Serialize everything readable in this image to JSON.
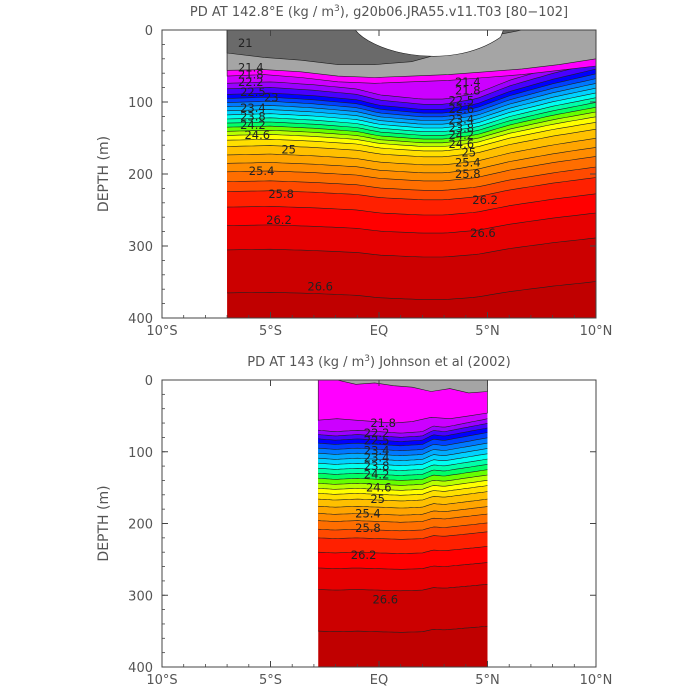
{
  "chart_data": [
    {
      "type": "contour",
      "title": "PD AT 142.8°E (kg / m",
      "title_sup": "3",
      "title_rest": "), g20b06.JRA55.v11.T03 [80−102]",
      "ylabel": "DEPTH (m)",
      "xlim": [
        -10,
        10
      ],
      "ylim": [
        400,
        0
      ],
      "x_ticks": [
        -10,
        -5,
        0,
        5,
        10
      ],
      "x_tick_labels": [
        "10°S",
        "5°S",
        "EQ",
        "5°N",
        "10°N"
      ],
      "y_ticks": [
        0,
        100,
        200,
        300,
        400
      ],
      "y_tick_labels": [
        "0",
        "100",
        "200",
        "300",
        "400"
      ],
      "data_extent_x": [
        -7,
        10
      ],
      "base_levels": [
        22.4,
        22.6,
        22.8,
        23,
        23.2,
        23.4,
        23.6,
        23.8,
        24,
        24.2,
        24.4,
        24.6,
        24.8,
        25,
        25.2,
        25.4,
        25.6,
        25.8,
        26,
        26.2,
        26.4,
        26.6,
        26.8,
        27
      ],
      "base_depths": [
        62,
        70,
        78,
        84,
        90,
        96,
        102,
        108,
        114,
        120,
        126,
        132,
        138,
        145,
        154,
        166,
        178,
        190,
        204,
        218,
        240,
        266,
        300,
        360
      ],
      "profile": [
        {
          "x": -7,
          "d": 12
        },
        {
          "x": -5,
          "d": 10
        },
        {
          "x": -3,
          "d": 14
        },
        {
          "x": -1,
          "d": 20
        },
        {
          "x": 0,
          "d": 28
        },
        {
          "x": 2,
          "d": 34
        },
        {
          "x": 3,
          "d": 34
        },
        {
          "x": 4.5,
          "d": 26
        },
        {
          "x": 6,
          "d": 8
        },
        {
          "x": 8,
          "d": -10
        },
        {
          "x": 10,
          "d": -25
        }
      ],
      "top_layers": [
        {
          "value": "21",
          "upper": 0,
          "lower": [
            32,
            38,
            42,
            48,
            48,
            44,
            30,
            10,
            0,
            0,
            0
          ],
          "color": "#6a6a6a"
        },
        {
          "value": "21.4",
          "upper_ref": 0,
          "lower": [
            56,
            55,
            58,
            64,
            66,
            64,
            62,
            58,
            54,
            48,
            40
          ],
          "color": "#a5a5a5"
        },
        {
          "value": "21.8",
          "lower": [
            64,
            62,
            66,
            72,
            74,
            72,
            70,
            66,
            62,
            56,
            50
          ],
          "color": "#ff00ff"
        }
      ],
      "contour_labels": [
        {
          "text": "21",
          "x": -6.5,
          "d": 18
        },
        {
          "text": "21.4",
          "x": -6.5,
          "d": 52
        },
        {
          "text": "21.8",
          "x": -6.5,
          "d": 62
        },
        {
          "text": "22.2",
          "x": -6.5,
          "d": 72
        },
        {
          "text": "22.5",
          "x": -6.4,
          "d": 86
        },
        {
          "text": "23",
          "x": -5.3,
          "d": 94
        },
        {
          "text": "23.4",
          "x": -6.4,
          "d": 108
        },
        {
          "text": "23.8",
          "x": -6.4,
          "d": 120
        },
        {
          "text": "24.2",
          "x": -6.4,
          "d": 132
        },
        {
          "text": "24.6",
          "x": -6.2,
          "d": 146
        },
        {
          "text": "25",
          "x": -4.5,
          "d": 166
        },
        {
          "text": "25.4",
          "x": -6.0,
          "d": 196
        },
        {
          "text": "25.8",
          "x": -5.1,
          "d": 228
        },
        {
          "text": "26.2",
          "x": -5.2,
          "d": 264
        },
        {
          "text": "21.4",
          "x": 3.5,
          "d": 72
        },
        {
          "text": "21.8",
          "x": 3.5,
          "d": 84
        },
        {
          "text": "22.5",
          "x": 3.2,
          "d": 98
        },
        {
          "text": "22.6",
          "x": 3.2,
          "d": 110
        },
        {
          "text": "23.4",
          "x": 3.2,
          "d": 124
        },
        {
          "text": "23.8",
          "x": 3.2,
          "d": 136
        },
        {
          "text": "24.2",
          "x": 3.2,
          "d": 146
        },
        {
          "text": "24.6",
          "x": 3.2,
          "d": 158
        },
        {
          "text": "25",
          "x": 3.8,
          "d": 170
        },
        {
          "text": "25.4",
          "x": 3.5,
          "d": 184
        },
        {
          "text": "25.8",
          "x": 3.5,
          "d": 200
        },
        {
          "text": "26.2",
          "x": 4.3,
          "d": 236
        },
        {
          "text": "26.6",
          "x": 4.2,
          "d": 282
        },
        {
          "text": "26.6",
          "x": -3.3,
          "d": 356
        }
      ]
    },
    {
      "type": "contour",
      "title": "PD AT 143 (kg / m",
      "title_sup": "3",
      "title_rest": ") Johnson et al (2002)",
      "ylabel": "DEPTH (m)",
      "xlim": [
        -10,
        10
      ],
      "ylim": [
        400,
        0
      ],
      "x_ticks": [
        -10,
        -5,
        0,
        5,
        10
      ],
      "x_tick_labels": [
        "10°S",
        "5°S",
        "EQ",
        "5°N",
        "10°N"
      ],
      "y_ticks": [
        0,
        100,
        200,
        300,
        400
      ],
      "y_tick_labels": [
        "0",
        "100",
        "200",
        "300",
        "400"
      ],
      "data_extent_x": [
        -2.8,
        5
      ],
      "base_levels": [
        22.4,
        22.6,
        22.8,
        23,
        23.2,
        23.4,
        23.6,
        23.8,
        24,
        24.2,
        24.4,
        24.6,
        24.8,
        25,
        25.2,
        25.4,
        25.6,
        25.8,
        26,
        26.2,
        26.4,
        26.6,
        26.8,
        27
      ],
      "base_depths": [
        70,
        76,
        82,
        88,
        95,
        102,
        109,
        116,
        123,
        130,
        137,
        144,
        151,
        158,
        166,
        176,
        186,
        196,
        208,
        220,
        240,
        262,
        292,
        350
      ],
      "profile": [
        {
          "x": -2.8,
          "d": 0
        },
        {
          "x": -2,
          "d": 2
        },
        {
          "x": -1,
          "d": 0
        },
        {
          "x": 0,
          "d": 2
        },
        {
          "x": 1,
          "d": 4
        },
        {
          "x": 2,
          "d": 2
        },
        {
          "x": 2.5,
          "d": -6
        },
        {
          "x": 3,
          "d": -4
        },
        {
          "x": 4,
          "d": -10
        },
        {
          "x": 5,
          "d": -16
        }
      ],
      "top_layers": [
        {
          "value": "21.4",
          "lower": [
            0,
            0,
            6,
            4,
            8,
            10,
            16,
            12,
            18,
            16
          ],
          "color": "#a5a5a5"
        },
        {
          "value": "21.8",
          "lower": [
            56,
            54,
            56,
            58,
            60,
            58,
            52,
            54,
            50,
            46
          ],
          "color": "#ff00ff"
        }
      ],
      "contour_labels": [
        {
          "text": "21.8",
          "x": -0.4,
          "d": 60
        },
        {
          "text": "22.2",
          "x": -0.7,
          "d": 74
        },
        {
          "text": "22.5",
          "x": -0.7,
          "d": 84
        },
        {
          "text": "23.4",
          "x": -0.7,
          "d": 98
        },
        {
          "text": "23.4",
          "x": -0.7,
          "d": 108
        },
        {
          "text": "23.8",
          "x": -0.7,
          "d": 120
        },
        {
          "text": "24.2",
          "x": -0.7,
          "d": 132
        },
        {
          "text": "24.6",
          "x": -0.6,
          "d": 150
        },
        {
          "text": "25",
          "x": -0.4,
          "d": 166
        },
        {
          "text": "25.4",
          "x": -1.1,
          "d": 186
        },
        {
          "text": "25.8",
          "x": -1.1,
          "d": 206
        },
        {
          "text": "26.2",
          "x": -1.3,
          "d": 244
        },
        {
          "text": "26.6",
          "x": -0.3,
          "d": 306
        }
      ]
    }
  ]
}
